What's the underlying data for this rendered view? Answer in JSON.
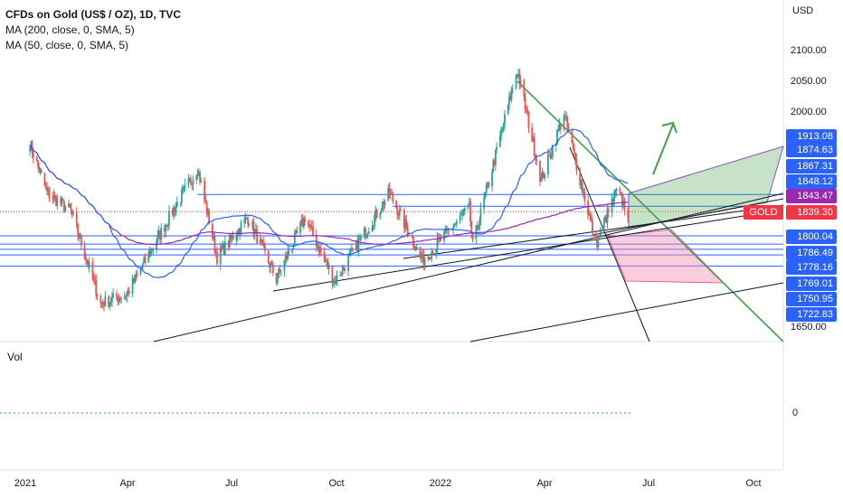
{
  "legend": {
    "title": "CFDs on Gold (US$ / OZ), 1D, TVC",
    "ma200": "MA (200, close, 0, SMA, 5)",
    "ma50": "MA (50, close, 0, SMA, 5)"
  },
  "volume_pane": {
    "label": "Vol",
    "zero_label": "0"
  },
  "price_axis": {
    "currency": "USD",
    "ticks": [
      "2100.00",
      "2050.00",
      "2000.00",
      "1650.00"
    ]
  },
  "price_tags": [
    {
      "label": "1913.08",
      "color": "#2962ff"
    },
    {
      "label": "1874.63",
      "color": "#2962ff"
    },
    {
      "label": "1867.31",
      "color": "#2962ff"
    },
    {
      "label": "1848.12",
      "color": "#2962ff"
    },
    {
      "label": "1843.47",
      "color": "#9c27b0"
    },
    {
      "label": "1839.30",
      "color": "#f23645"
    },
    {
      "label": "1800.04",
      "color": "#2962ff"
    },
    {
      "label": "1786.49",
      "color": "#2962ff"
    },
    {
      "label": "1778.16",
      "color": "#2962ff"
    },
    {
      "label": "1769.01",
      "color": "#2962ff"
    },
    {
      "label": "1750.95",
      "color": "#2962ff"
    },
    {
      "label": "1722.83",
      "color": "#2962ff"
    }
  ],
  "symbol_tag": "GOLD",
  "time_axis": [
    "2021",
    "Apr",
    "Jul",
    "Oct",
    "2022",
    "Apr",
    "Jul",
    "Oct"
  ],
  "colors": {
    "up": "#26a69a",
    "down": "#ef5350",
    "ma200": "#9c27b0",
    "ma50": "#2962ff",
    "hline": "#2962ff",
    "trend": "#43a047",
    "support": "#131722"
  },
  "chart_data": {
    "type": "candlestick",
    "title": "CFDs on Gold (US$ / OZ), 1D, TVC",
    "ylabel": "USD",
    "ylim": [
      1620,
      2130
    ],
    "x_range": [
      "2021-01-01",
      "2022-11-01"
    ],
    "price_path": [
      {
        "date": "2021-01-05",
        "value": 1950
      },
      {
        "date": "2021-01-20",
        "value": 1870
      },
      {
        "date": "2021-02-10",
        "value": 1840
      },
      {
        "date": "2021-03-08",
        "value": 1690
      },
      {
        "date": "2021-03-31",
        "value": 1705
      },
      {
        "date": "2021-05-10",
        "value": 1840
      },
      {
        "date": "2021-06-01",
        "value": 1910
      },
      {
        "date": "2021-06-18",
        "value": 1765
      },
      {
        "date": "2021-07-15",
        "value": 1830
      },
      {
        "date": "2021-08-09",
        "value": 1730
      },
      {
        "date": "2021-09-03",
        "value": 1830
      },
      {
        "date": "2021-09-29",
        "value": 1725
      },
      {
        "date": "2021-11-16",
        "value": 1870
      },
      {
        "date": "2021-12-15",
        "value": 1760
      },
      {
        "date": "2022-01-25",
        "value": 1845
      },
      {
        "date": "2022-01-28",
        "value": 1785
      },
      {
        "date": "2022-03-08",
        "value": 2070
      },
      {
        "date": "2022-03-29",
        "value": 1890
      },
      {
        "date": "2022-04-18",
        "value": 1998
      },
      {
        "date": "2022-05-16",
        "value": 1787
      },
      {
        "date": "2022-06-03",
        "value": 1872
      },
      {
        "date": "2022-06-13",
        "value": 1839
      }
    ],
    "horizontal_levels": [
      1913.08,
      1874.63,
      1867.31,
      1848.12,
      1843.47,
      1800.04,
      1786.49,
      1778.16,
      1769.01,
      1750.95,
      1722.83
    ],
    "last_price": 1839.3,
    "annotations": [
      "rising wedge shaded green",
      "projection area shaded pink",
      "upward arrow",
      "descending green trendline"
    ]
  }
}
